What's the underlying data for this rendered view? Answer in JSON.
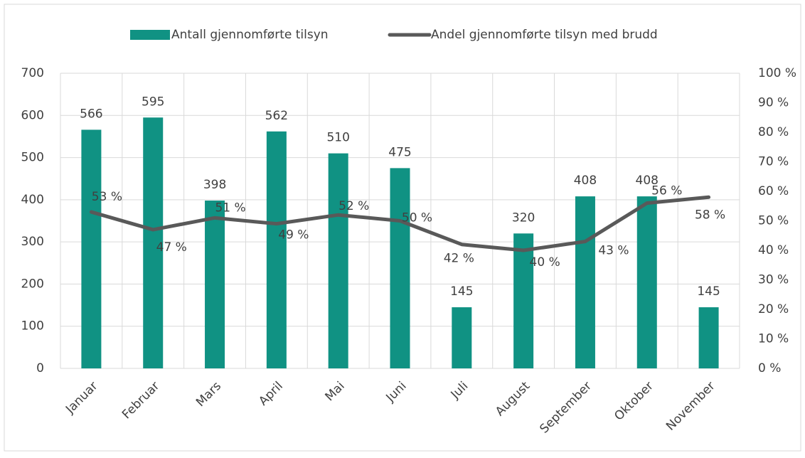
{
  "chart_data": {
    "type": "combo",
    "categories": [
      "Januar",
      "Februar",
      "Mars",
      "April",
      "Mai",
      "Juni",
      "Juli",
      "August",
      "September",
      "Oktober",
      "November"
    ],
    "series": [
      {
        "name": "Antall gjennomførte tilsyn",
        "type": "bar",
        "color": "#109283",
        "values": [
          566,
          595,
          398,
          562,
          510,
          475,
          145,
          320,
          408,
          408,
          145
        ]
      },
      {
        "name": "Andel gjennomførte tilsyn med brudd",
        "type": "line",
        "axis": "y2",
        "color": "#595959",
        "values": [
          53,
          47,
          51,
          49,
          52,
          50,
          42,
          40,
          43,
          56,
          58
        ],
        "value_labels": [
          "53 %",
          "47 %",
          "51 %",
          "49 %",
          "52 %",
          "50 %",
          "42 %",
          "40 %",
          "43 %",
          "56 %",
          "58 %"
        ]
      }
    ],
    "ylim": [
      0,
      700
    ],
    "yticks": [
      0,
      100,
      200,
      300,
      400,
      500,
      600,
      700
    ],
    "y2lim": [
      0,
      100
    ],
    "y2ticks": [
      {
        "value": 0,
        "label": "0 %"
      },
      {
        "value": 10,
        "label": "10 %"
      },
      {
        "value": 20,
        "label": "20 %"
      },
      {
        "value": 30,
        "label": "30 %"
      },
      {
        "value": 40,
        "label": "40 %"
      },
      {
        "value": 50,
        "label": "50 %"
      },
      {
        "value": 60,
        "label": "60 %"
      },
      {
        "value": 70,
        "label": "70 %"
      },
      {
        "value": 80,
        "label": "80 %"
      },
      {
        "value": 90,
        "label": "90 %"
      },
      {
        "value": 100,
        "label": "100 %"
      }
    ],
    "grid": true,
    "legend": "top"
  }
}
